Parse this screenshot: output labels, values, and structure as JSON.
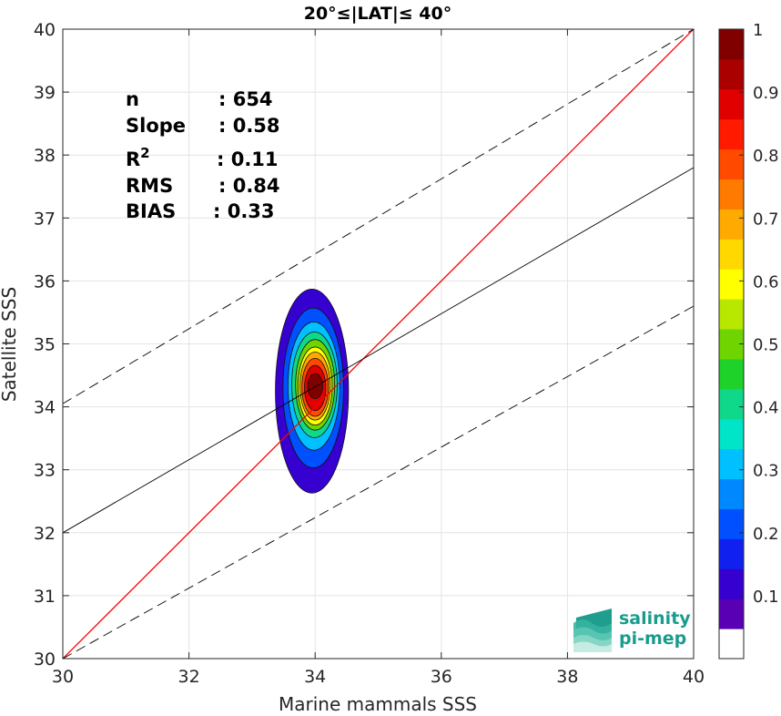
{
  "chart_data": {
    "type": "contour",
    "title": "20°≤|LAT|≤ 40°",
    "xlabel": "Marine mammals SSS",
    "ylabel": "Satellite SSS",
    "xlim": [
      30,
      40
    ],
    "ylim": [
      30,
      40
    ],
    "xticks": [
      "30",
      "32",
      "34",
      "36",
      "38",
      "40"
    ],
    "yticks": [
      "30",
      "31",
      "32",
      "33",
      "34",
      "35",
      "36",
      "37",
      "38",
      "39",
      "40"
    ],
    "grid": true,
    "stats": [
      {
        "label": "n",
        "sep": ": 654"
      },
      {
        "label": "Slope",
        "sep": ": 0.58"
      },
      {
        "label": "R",
        "sup": "2",
        "sep": ": 0.11"
      },
      {
        "label": "RMS",
        "sep": ": 0.84"
      },
      {
        "label": "BIAS",
        "sep": ": 0.33"
      }
    ],
    "lines": [
      {
        "name": "one-to-one",
        "color": "#ff0000",
        "style": "solid",
        "x": [
          30,
          40
        ],
        "y": [
          30,
          40
        ]
      },
      {
        "name": "regression",
        "color": "#000000",
        "style": "solid",
        "x": [
          30,
          40
        ],
        "y": [
          32.0,
          37.8
        ]
      },
      {
        "name": "upper-bound",
        "color": "#000000",
        "style": "dashed",
        "x": [
          30,
          40
        ],
        "y": [
          34.05,
          40.0
        ]
      },
      {
        "name": "lower-bound",
        "color": "#000000",
        "style": "dashed",
        "x": [
          30,
          40
        ],
        "y": [
          30.0,
          35.6
        ]
      }
    ],
    "contour_center": {
      "x": 33.95,
      "y": 34.25
    },
    "contour_levels": [
      {
        "level": 0.05,
        "rx": 0.58,
        "ry": 1.62,
        "dx": 0.0,
        "dy": 0.0
      },
      {
        "level": 0.15,
        "rx": 0.48,
        "ry": 1.27,
        "dx": 0.02,
        "dy": 0.05
      },
      {
        "level": 0.25,
        "rx": 0.41,
        "ry": 1.02,
        "dx": 0.03,
        "dy": 0.08
      },
      {
        "level": 0.35,
        "rx": 0.36,
        "ry": 0.84,
        "dx": 0.04,
        "dy": 0.1
      },
      {
        "level": 0.45,
        "rx": 0.31,
        "ry": 0.72,
        "dx": 0.05,
        "dy": 0.1
      },
      {
        "level": 0.55,
        "rx": 0.27,
        "ry": 0.62,
        "dx": 0.05,
        "dy": 0.08
      },
      {
        "level": 0.65,
        "rx": 0.24,
        "ry": 0.54,
        "dx": 0.05,
        "dy": 0.08
      },
      {
        "level": 0.75,
        "rx": 0.21,
        "ry": 0.46,
        "dx": 0.05,
        "dy": 0.06
      },
      {
        "level": 0.85,
        "rx": 0.17,
        "ry": 0.36,
        "dx": 0.05,
        "dy": 0.05
      },
      {
        "level": 0.95,
        "rx": 0.12,
        "ry": 0.2,
        "dx": 0.05,
        "dy": 0.08
      }
    ],
    "colorbar": {
      "min": 0,
      "max": 1,
      "ticks": [
        "0.1",
        "0.2",
        "0.3",
        "0.4",
        "0.5",
        "0.6",
        "0.7",
        "0.8",
        "0.9",
        "1"
      ],
      "tick_values": [
        0.1,
        0.2,
        0.3,
        0.4,
        0.5,
        0.6,
        0.7,
        0.8,
        0.9,
        1.0
      ],
      "colors": [
        "#ffffff",
        "#5a00b4",
        "#3500d0",
        "#1020ee",
        "#0050ff",
        "#0088ff",
        "#00c0ff",
        "#00e4c8",
        "#10d88a",
        "#1ed22a",
        "#70d400",
        "#b8e800",
        "#ffff00",
        "#ffd800",
        "#ffaa00",
        "#ff7a00",
        "#ff4a00",
        "#ff1a00",
        "#e00000",
        "#aa0000",
        "#800000"
      ]
    }
  },
  "logo": {
    "line1": "salinity",
    "line2": "pi-mep"
  }
}
